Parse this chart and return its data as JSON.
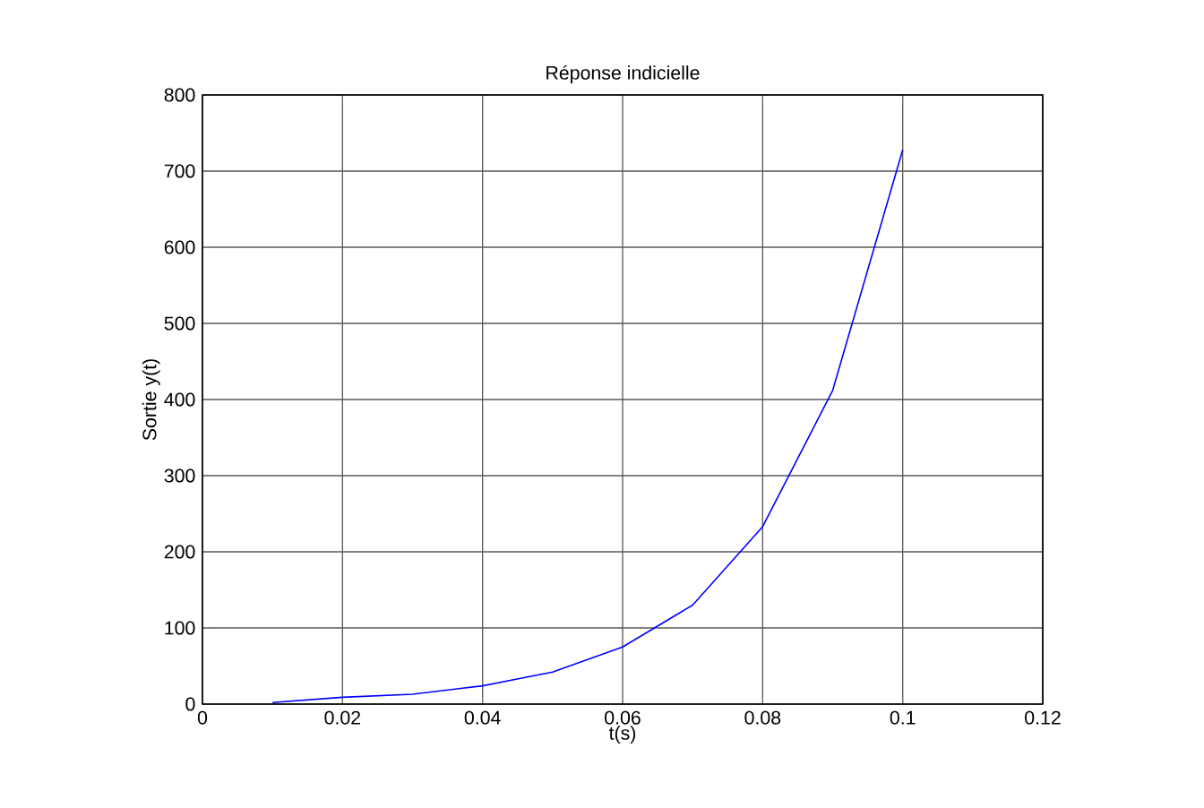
{
  "chart_data": {
    "type": "line",
    "title": "Réponse indicielle",
    "xlabel": "t(s)",
    "ylabel": "Sortie y(t)",
    "x": [
      0.01,
      0.02,
      0.03,
      0.04,
      0.05,
      0.06,
      0.07,
      0.08,
      0.09,
      0.1
    ],
    "series": [
      {
        "color": "#0000ff",
        "values": [
          2,
          9,
          13,
          24,
          42,
          75,
          130,
          233,
          412,
          728
        ]
      }
    ],
    "xlim": [
      0,
      0.12
    ],
    "ylim": [
      0,
      800
    ],
    "xticks": [
      0,
      0.02,
      0.04,
      0.06,
      0.08,
      0.1,
      0.12
    ],
    "yticks": [
      0,
      100,
      200,
      300,
      400,
      500,
      600,
      700,
      800
    ],
    "grid": true,
    "line_style": "solid",
    "marker": "none"
  }
}
